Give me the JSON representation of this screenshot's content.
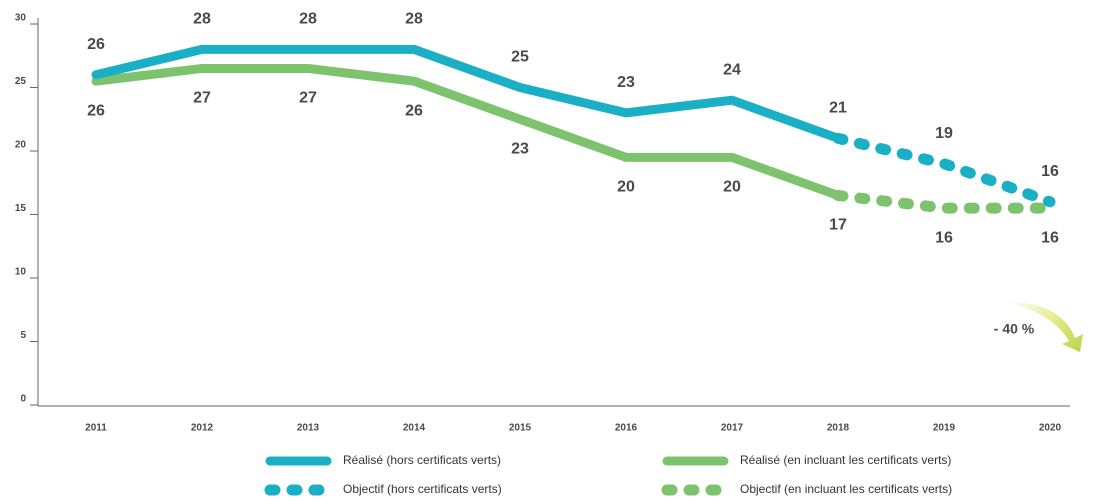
{
  "chart_data": {
    "type": "line",
    "categories": [
      "2011",
      "2012",
      "2013",
      "2014",
      "2015",
      "2016",
      "2017",
      "2018",
      "2019",
      "2020"
    ],
    "series": [
      {
        "name": "Réalisé (hors certificats verts)",
        "color": "#1aafc4",
        "style": "solid",
        "values": [
          26,
          28,
          28,
          28,
          25,
          23,
          24,
          21,
          null,
          null
        ],
        "value_labels": [
          "26",
          "28",
          "28",
          "28",
          "25",
          "23",
          "24",
          "21",
          null,
          null
        ]
      },
      {
        "name": "Objectif  (hors certificats verts)",
        "color": "#1aafc4",
        "style": "dotted",
        "values": [
          null,
          null,
          null,
          null,
          null,
          null,
          null,
          21,
          19,
          16
        ],
        "value_labels": [
          null,
          null,
          null,
          null,
          null,
          null,
          null,
          null,
          "19",
          "16"
        ]
      },
      {
        "name": "Réalisé (en incluant les certificats verts)",
        "color": "#7dc36e",
        "style": "solid",
        "values": [
          25.5,
          26.5,
          26.5,
          25.5,
          22.5,
          19.5,
          19.5,
          16.5,
          null,
          null
        ],
        "value_labels": [
          "26",
          "27",
          "27",
          "26",
          "23",
          "20",
          "20",
          "17",
          null,
          null
        ]
      },
      {
        "name": "Objectif (en incluant les certificats verts)",
        "color": "#7dc36e",
        "style": "dotted",
        "values": [
          null,
          null,
          null,
          null,
          null,
          null,
          null,
          16.5,
          15.5,
          15.5
        ],
        "value_labels": [
          null,
          null,
          null,
          null,
          null,
          null,
          null,
          null,
          "16",
          "16"
        ]
      }
    ],
    "ylim": [
      0,
      30
    ],
    "yticks": [
      0,
      5,
      10,
      15,
      20,
      25,
      30
    ],
    "annotation": "- 40 %"
  }
}
